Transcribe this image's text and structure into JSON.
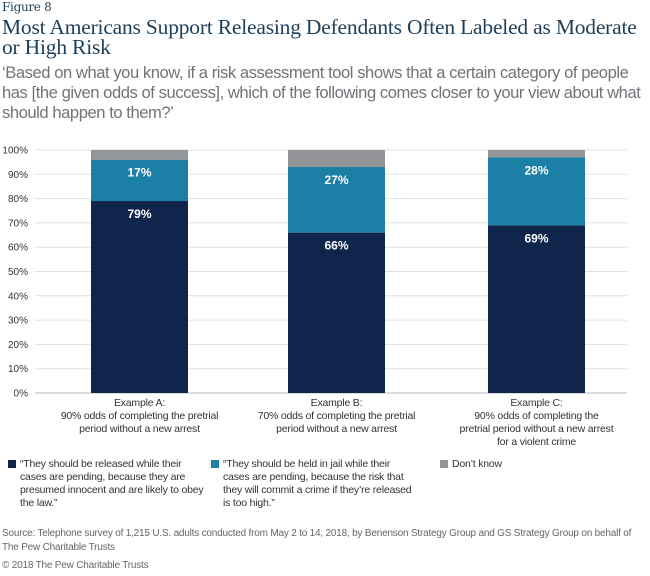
{
  "figure_label": "Figure 8",
  "title": "Most Americans Support Releasing Defendants Often Labeled as Moderate or High Risk",
  "subtitle": "‘Based on what you know, if a risk assessment tool shows that a certain category of people has [the given odds of success], which of the following comes closer to your view about what should happen to them?’",
  "chart_data": {
    "type": "bar",
    "stacked": true,
    "title": "Most Americans Support Releasing Defendants Often Labeled as Moderate or High Risk",
    "categories": [
      "Example A",
      "Example B",
      "Example C"
    ],
    "category_labels": [
      [
        "Example A:",
        "90% odds of completing the pretrial",
        "period without a new arrest"
      ],
      [
        "Example B:",
        "70% odds of completing the pretrial",
        "period without a new arrest"
      ],
      [
        "Example C:",
        "90% odds of completing the",
        "pretrial period without a new arrest",
        "for a violent crime"
      ]
    ],
    "series": [
      {
        "name": "“They should be released while their cases are pending, because they are presumed innocent and are likely to obey the law.”",
        "color": "#0f254c",
        "values": [
          79,
          66,
          69
        ],
        "labels": [
          "79%",
          "66%",
          "69%"
        ]
      },
      {
        "name": "“They should be held in jail while their cases are pending, because the risk that they will commit a crime if they’re released is too high.”",
        "color": "#1c7fa6",
        "values": [
          17,
          27,
          28
        ],
        "labels": [
          "17%",
          "27%",
          "28%"
        ]
      },
      {
        "name": "Don’t know",
        "color": "#939598",
        "values": [
          4,
          7,
          3
        ],
        "labels": [
          "",
          "",
          ""
        ]
      }
    ],
    "xlabel": "",
    "ylabel": "",
    "ylim": [
      0,
      100
    ],
    "yticks": [
      0,
      10,
      20,
      30,
      40,
      50,
      60,
      70,
      80,
      90,
      100
    ],
    "ytick_labels": [
      "0%",
      "10%",
      "20%",
      "30%",
      "40%",
      "50%",
      "60%",
      "70%",
      "80%",
      "90%",
      "100%"
    ],
    "grid": true,
    "legend_position": "bottom"
  },
  "legend": [
    {
      "text": "“They should be released while their cases are pending, because they are presumed innocent and are likely to obey the law.”",
      "color": "#0f254c"
    },
    {
      "text": "“They should be held in jail while their cases are pending, because the risk that they will commit a crime if they’re released is too high.”",
      "color": "#1c7fa6"
    },
    {
      "text": "Don’t know",
      "color": "#939598"
    }
  ],
  "source": "Source: Telephone survey of 1,215 U.S. adults conducted from May 2 to 14, 2018, by Benenson Strategy Group and GS Strategy Group on behalf of The Pew Charitable Trusts",
  "copyright": "© 2018 The Pew Charitable Trusts"
}
